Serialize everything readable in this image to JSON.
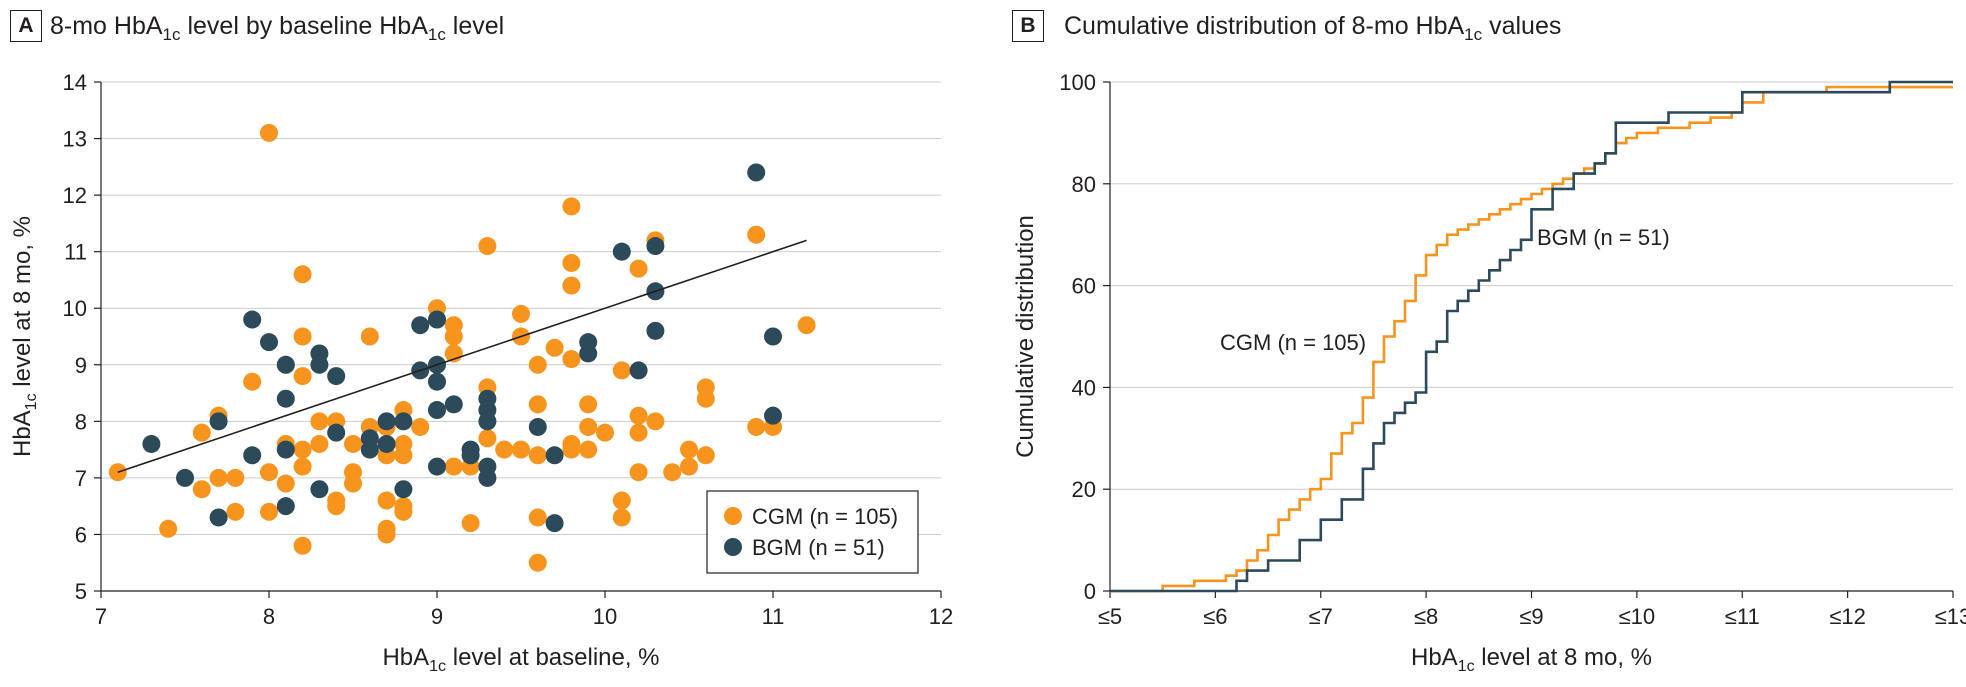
{
  "colors": {
    "cgm": "#f7941d",
    "bgm": "#2c4a5a",
    "grid": "#cccccc",
    "text": "#231f20"
  },
  "panelA": {
    "label": "A",
    "title": {
      "pre": "8-mo HbA",
      "sub": "1c",
      "mid": " level by baseline HbA",
      "sub2": "1c",
      "post": " level"
    }
  },
  "panelB": {
    "label": "B",
    "title": {
      "pre": "Cumulative distribution of 8-mo HbA",
      "sub": "1c",
      "post": " values"
    }
  },
  "chart_data": [
    {
      "type": "scatter",
      "title": "8-mo HbA1c level by baseline HbA1c level",
      "xlabel": "HbA1c level at baseline, %",
      "ylabel": "HbA1c level at 8 mo, %",
      "xlim": [
        7,
        12
      ],
      "ylim": [
        5,
        14
      ],
      "x_ticks": [
        "7",
        "8",
        "9",
        "10",
        "11",
        "12"
      ],
      "y_ticks": [
        "5",
        "6",
        "7",
        "8",
        "9",
        "10",
        "11",
        "12",
        "13",
        "14"
      ],
      "grid": "horizontal",
      "legend_position": "bottom-right",
      "trendline": {
        "x": [
          7.1,
          11.2
        ],
        "y": [
          7.1,
          11.2
        ]
      },
      "series": [
        {
          "name": "CGM (n = 105)",
          "points": [
            [
              7.1,
              7.1
            ],
            [
              7.4,
              6.1
            ],
            [
              7.6,
              7.8
            ],
            [
              7.6,
              6.8
            ],
            [
              7.7,
              8.1
            ],
            [
              7.7,
              7.0
            ],
            [
              7.8,
              7.0
            ],
            [
              7.8,
              6.4
            ],
            [
              7.9,
              8.7
            ],
            [
              8.0,
              13.1
            ],
            [
              8.0,
              7.1
            ],
            [
              8.0,
              6.4
            ],
            [
              8.1,
              9.0
            ],
            [
              8.1,
              7.6
            ],
            [
              8.1,
              6.9
            ],
            [
              8.2,
              10.6
            ],
            [
              8.2,
              9.5
            ],
            [
              8.2,
              8.8
            ],
            [
              8.2,
              7.5
            ],
            [
              8.2,
              7.2
            ],
            [
              8.2,
              5.8
            ],
            [
              8.3,
              8.0
            ],
            [
              8.3,
              7.6
            ],
            [
              8.4,
              8.0
            ],
            [
              8.4,
              6.6
            ],
            [
              8.4,
              6.5
            ],
            [
              8.5,
              7.6
            ],
            [
              8.5,
              7.1
            ],
            [
              8.5,
              6.9
            ],
            [
              8.6,
              9.5
            ],
            [
              8.6,
              7.9
            ],
            [
              8.6,
              7.7
            ],
            [
              8.7,
              7.9
            ],
            [
              8.7,
              7.4
            ],
            [
              8.7,
              6.6
            ],
            [
              8.7,
              6.1
            ],
            [
              8.7,
              6.0
            ],
            [
              8.8,
              8.2
            ],
            [
              8.8,
              7.6
            ],
            [
              8.8,
              7.4
            ],
            [
              8.8,
              6.5
            ],
            [
              8.8,
              6.4
            ],
            [
              8.9,
              7.9
            ],
            [
              9.0,
              10.0
            ],
            [
              9.0,
              9.8
            ],
            [
              9.1,
              9.7
            ],
            [
              9.1,
              9.5
            ],
            [
              9.1,
              9.2
            ],
            [
              9.1,
              7.2
            ],
            [
              9.2,
              7.2
            ],
            [
              9.2,
              6.2
            ],
            [
              9.3,
              11.1
            ],
            [
              9.3,
              8.6
            ],
            [
              9.3,
              7.7
            ],
            [
              9.4,
              7.5
            ],
            [
              9.5,
              9.9
            ],
            [
              9.5,
              9.5
            ],
            [
              9.5,
              7.5
            ],
            [
              9.6,
              9.0
            ],
            [
              9.6,
              8.3
            ],
            [
              9.6,
              7.4
            ],
            [
              9.6,
              6.3
            ],
            [
              9.6,
              5.5
            ],
            [
              9.7,
              9.3
            ],
            [
              9.8,
              11.8
            ],
            [
              9.8,
              10.8
            ],
            [
              9.8,
              10.4
            ],
            [
              9.8,
              9.1
            ],
            [
              9.8,
              7.6
            ],
            [
              9.8,
              7.5
            ],
            [
              9.9,
              8.3
            ],
            [
              9.9,
              7.9
            ],
            [
              9.9,
              7.5
            ],
            [
              10.0,
              7.8
            ],
            [
              10.1,
              8.9
            ],
            [
              10.1,
              6.6
            ],
            [
              10.1,
              6.3
            ],
            [
              10.2,
              10.7
            ],
            [
              10.2,
              8.1
            ],
            [
              10.2,
              7.8
            ],
            [
              10.2,
              7.1
            ],
            [
              10.3,
              11.2
            ],
            [
              10.3,
              8.0
            ],
            [
              10.4,
              7.1
            ],
            [
              10.5,
              7.5
            ],
            [
              10.5,
              7.2
            ],
            [
              10.6,
              8.6
            ],
            [
              10.6,
              8.4
            ],
            [
              10.6,
              7.4
            ],
            [
              10.9,
              11.3
            ],
            [
              10.9,
              7.9
            ],
            [
              11.0,
              7.9
            ],
            [
              11.2,
              9.7
            ]
          ]
        },
        {
          "name": "BGM (n = 51)",
          "points": [
            [
              7.3,
              7.6
            ],
            [
              7.5,
              7.0
            ],
            [
              7.7,
              8.0
            ],
            [
              7.7,
              6.3
            ],
            [
              7.9,
              9.8
            ],
            [
              7.9,
              7.4
            ],
            [
              8.0,
              9.4
            ],
            [
              8.1,
              9.0
            ],
            [
              8.1,
              8.4
            ],
            [
              8.1,
              7.5
            ],
            [
              8.1,
              6.5
            ],
            [
              8.3,
              9.2
            ],
            [
              8.3,
              9.0
            ],
            [
              8.3,
              6.8
            ],
            [
              8.4,
              8.8
            ],
            [
              8.4,
              7.8
            ],
            [
              8.6,
              7.7
            ],
            [
              8.6,
              7.5
            ],
            [
              8.7,
              8.0
            ],
            [
              8.7,
              7.6
            ],
            [
              8.8,
              8.0
            ],
            [
              8.8,
              6.8
            ],
            [
              8.9,
              9.7
            ],
            [
              8.9,
              8.9
            ],
            [
              9.0,
              9.8
            ],
            [
              9.0,
              9.0
            ],
            [
              9.0,
              8.7
            ],
            [
              9.0,
              8.2
            ],
            [
              9.0,
              7.2
            ],
            [
              9.1,
              8.3
            ],
            [
              9.2,
              7.5
            ],
            [
              9.2,
              7.4
            ],
            [
              9.3,
              8.4
            ],
            [
              9.3,
              8.2
            ],
            [
              9.3,
              8.0
            ],
            [
              9.3,
              7.2
            ],
            [
              9.3,
              7.0
            ],
            [
              9.6,
              7.9
            ],
            [
              9.7,
              7.4
            ],
            [
              9.7,
              6.2
            ],
            [
              9.9,
              9.4
            ],
            [
              9.9,
              9.2
            ],
            [
              10.1,
              11.0
            ],
            [
              10.2,
              8.9
            ],
            [
              10.3,
              11.1
            ],
            [
              10.3,
              10.3
            ],
            [
              10.3,
              9.6
            ],
            [
              10.9,
              12.4
            ],
            [
              11.0,
              9.5
            ],
            [
              11.0,
              8.1
            ]
          ]
        }
      ]
    },
    {
      "type": "line",
      "step": true,
      "title": "Cumulative distribution of 8-mo HbA1c values",
      "xlabel": "HbA1c level at 8 mo, %",
      "ylabel": "Cumulative distribution",
      "xlim": [
        5,
        13
      ],
      "ylim": [
        0,
        100
      ],
      "x_ticks": [
        "≤5",
        "≤6",
        "≤7",
        "≤8",
        "≤9",
        "≤10",
        "≤11",
        "≤12",
        "≤13"
      ],
      "y_ticks": [
        "0",
        "20",
        "40",
        "60",
        "80",
        "100"
      ],
      "grid": "horizontal",
      "series": [
        {
          "name": "CGM (n = 105)",
          "label": "CGM (n = 105)",
          "x": [
            5.0,
            5.5,
            5.8,
            6.1,
            6.2,
            6.3,
            6.4,
            6.5,
            6.6,
            6.7,
            6.8,
            6.9,
            7.0,
            7.1,
            7.2,
            7.3,
            7.4,
            7.5,
            7.6,
            7.7,
            7.8,
            7.9,
            8.0,
            8.1,
            8.2,
            8.3,
            8.4,
            8.5,
            8.6,
            8.7,
            8.8,
            8.9,
            9.0,
            9.1,
            9.2,
            9.3,
            9.4,
            9.5,
            9.6,
            9.7,
            9.8,
            9.9,
            10.0,
            10.2,
            10.5,
            10.7,
            10.9,
            11.0,
            11.2,
            11.8,
            13.0
          ],
          "y": [
            0,
            1,
            2,
            3,
            4,
            6,
            8,
            11,
            14,
            16,
            18,
            20,
            22,
            27,
            31,
            33,
            38,
            45,
            50,
            53,
            57,
            62,
            66,
            68,
            70,
            71,
            72,
            73,
            74,
            75,
            76,
            77,
            78,
            79,
            80,
            81,
            82,
            83,
            84,
            86,
            88,
            89,
            90,
            91,
            92,
            93,
            94,
            96,
            98,
            99,
            99
          ]
        },
        {
          "name": "BGM (n = 51)",
          "label": "BGM (n = 51)",
          "x": [
            5.0,
            6.2,
            6.3,
            6.5,
            6.8,
            7.0,
            7.2,
            7.4,
            7.5,
            7.6,
            7.7,
            7.8,
            7.9,
            8.0,
            8.1,
            8.2,
            8.3,
            8.4,
            8.5,
            8.6,
            8.7,
            8.8,
            8.9,
            9.0,
            9.2,
            9.4,
            9.6,
            9.7,
            9.8,
            10.3,
            11.0,
            11.2,
            12.4,
            13.0
          ],
          "y": [
            0,
            2,
            4,
            6,
            10,
            14,
            18,
            24,
            29,
            33,
            35,
            37,
            39,
            47,
            49,
            55,
            57,
            59,
            61,
            63,
            65,
            67,
            69,
            75,
            79,
            82,
            84,
            86,
            92,
            94,
            98,
            98,
            100,
            100
          ]
        }
      ]
    }
  ]
}
